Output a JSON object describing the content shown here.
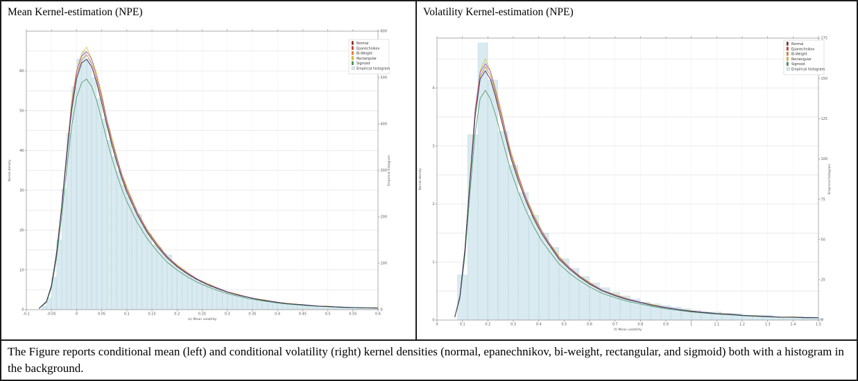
{
  "caption": "The Figure reports conditional mean (left) and conditional volatility (right) kernel densities (normal, epanechnikov, bi-weight, rectangular, and sigmoid) both with a histogram in the background.",
  "histogram_style": {
    "fill": "#d9eaf0",
    "stroke": "#b9d6e0"
  },
  "kernels": [
    {
      "name": "Normal",
      "line_color": "#30365a",
      "scale": 1.0,
      "jitter": 0.2
    },
    {
      "name": "Epanechnikov",
      "line_color": "#a14fa8",
      "scale": 1.03,
      "jitter": 0.5
    },
    {
      "name": "Bi-Weight",
      "line_color": "#e0832a",
      "scale": 1.015,
      "jitter": 0.45
    },
    {
      "name": "Rectangular",
      "line_color": "#d4c32e",
      "scale": 1.04,
      "jitter": 1.3
    },
    {
      "name": "Sigmoid",
      "line_color": "#43935a",
      "scale": 0.92,
      "jitter": 0.15
    }
  ],
  "legend_items": [
    {
      "label": "Normal",
      "marker_color": "#8a3324"
    },
    {
      "label": "Epanechnikov",
      "marker_color": "#d03b2f"
    },
    {
      "label": "Bi-Weight",
      "marker_color": "#e0832a"
    },
    {
      "label": "Rectangular",
      "marker_color": "#e3b72e"
    },
    {
      "label": "Sigmoid",
      "marker_color": "#43935a"
    },
    {
      "label": "Empirical histogram",
      "marker_color": "#d9eaf0"
    }
  ],
  "chart_data": [
    {
      "type": "line",
      "title": "Mean Kernel-estimation (NPE)",
      "xlabel": "(e) Mean volatility",
      "ylabel_left": "Kernel density",
      "ylabel_right": "Empirical histogram",
      "legend_position": "top-right",
      "grid": true,
      "xlim": [
        -0.1,
        0.6
      ],
      "xtick_values": [
        -0.1,
        -0.05,
        0,
        0.05,
        0.1,
        0.15,
        0.2,
        0.25,
        0.3,
        0.35,
        0.4,
        0.45,
        0.5,
        0.55,
        0.6
      ],
      "xtick_labels": [
        "-0.1",
        "-0.05",
        "0",
        "0.05",
        "0.1",
        "0.15",
        "0.2",
        "0.25",
        "0.3",
        "0.35",
        "0.4",
        "0.45",
        "0.5",
        "0.55",
        "0.6"
      ],
      "ylim_left": [
        0,
        70
      ],
      "ytick_left": [
        0,
        10,
        20,
        30,
        40,
        50,
        60
      ],
      "ylim_right": [
        0,
        600
      ],
      "ytick_right": [
        0,
        100,
        200,
        300,
        400,
        500,
        600
      ],
      "grid_step": 5,
      "histogram": {
        "axis": "right",
        "x0": -0.065,
        "dx": 0.01,
        "values": [
          8,
          25,
          70,
          150,
          260,
          380,
          480,
          540,
          556,
          540,
          500,
          455,
          410,
          365,
          330,
          298,
          268,
          243,
          220,
          205,
          180,
          163,
          140,
          134,
          121,
          118,
          99,
          90,
          81,
          74,
          67,
          60,
          55,
          50,
          45,
          41,
          37,
          33,
          30,
          27,
          25,
          22,
          20,
          18,
          17,
          15,
          14,
          12,
          11,
          10,
          9,
          8,
          8,
          7,
          6,
          6,
          5,
          5,
          4,
          4,
          4,
          3,
          3,
          3,
          2,
          2,
          2
        ]
      },
      "density": {
        "axis": "left",
        "x": [
          -0.075,
          -0.06,
          -0.05,
          -0.04,
          -0.03,
          -0.02,
          -0.01,
          0,
          0.01,
          0.02,
          0.03,
          0.04,
          0.05,
          0.06,
          0.07,
          0.08,
          0.09,
          0.1,
          0.12,
          0.14,
          0.16,
          0.18,
          0.2,
          0.22,
          0.24,
          0.26,
          0.28,
          0.3,
          0.32,
          0.34,
          0.36,
          0.38,
          0.4,
          0.42,
          0.45,
          0.48,
          0.5,
          0.53,
          0.56,
          0.6
        ],
        "y": [
          0.3,
          2,
          6,
          14,
          25,
          38,
          50,
          58,
          62,
          63,
          61,
          57,
          52,
          46.5,
          41.5,
          37,
          33,
          29.5,
          24,
          19.5,
          16,
          13,
          10.8,
          9,
          7.5,
          6.3,
          5.3,
          4.4,
          3.7,
          3.1,
          2.6,
          2.2,
          1.8,
          1.5,
          1.2,
          0.9,
          0.8,
          0.6,
          0.5,
          0.4
        ]
      }
    },
    {
      "type": "line",
      "title": "Volatility Kernel-estimation (NPE)",
      "xlabel": "(f) Mean volatility",
      "ylabel_left": "Kernel density",
      "ylabel_right": "Empirical histogram",
      "legend_position": "top-right",
      "grid": true,
      "xlim": [
        0,
        1.5
      ],
      "xtick_values": [
        0,
        0.1,
        0.2,
        0.3,
        0.4,
        0.5,
        0.6,
        0.7,
        0.8,
        0.9,
        1,
        1.1,
        1.2,
        1.3,
        1.4,
        1.5
      ],
      "xtick_labels": [
        "0",
        "0.1",
        "0.2",
        "0.3",
        "0.4",
        "0.5",
        "0.6",
        "0.7",
        "0.8",
        "0.9",
        "1",
        "1.1",
        "1.2",
        "1.3",
        "1.4",
        "1.5"
      ],
      "ylim_left": [
        0,
        4.86
      ],
      "ytick_left": [
        0,
        1,
        2,
        3,
        4
      ],
      "ylim_right": [
        0,
        175
      ],
      "ytick_right": [
        0,
        25,
        50,
        75,
        100,
        125,
        150,
        175
      ],
      "grid_step": 0.5,
      "histogram": {
        "axis": "right",
        "x0": 0.1,
        "dx": 0.04,
        "values": [
          28,
          115,
          172,
          149,
          117,
          96,
          79,
          65,
          54,
          45,
          38,
          32,
          27,
          23,
          20,
          17,
          15,
          13,
          11,
          10,
          9,
          8,
          7,
          6,
          5,
          5,
          4,
          4,
          3,
          3,
          3,
          2,
          2,
          2,
          2,
          1
        ]
      },
      "density": {
        "axis": "left",
        "x": [
          0.07,
          0.09,
          0.11,
          0.13,
          0.15,
          0.17,
          0.19,
          0.21,
          0.23,
          0.25,
          0.27,
          0.29,
          0.32,
          0.35,
          0.38,
          0.41,
          0.44,
          0.48,
          0.52,
          0.56,
          0.6,
          0.65,
          0.7,
          0.75,
          0.8,
          0.85,
          0.9,
          0.95,
          1.0,
          1.05,
          1.1,
          1.15,
          1.2,
          1.25,
          1.3,
          1.35,
          1.4,
          1.45,
          1.5
        ],
        "y": [
          0.05,
          0.4,
          1.2,
          2.4,
          3.5,
          4.15,
          4.3,
          4.15,
          3.85,
          3.5,
          3.15,
          2.8,
          2.4,
          2.05,
          1.75,
          1.5,
          1.3,
          1.05,
          0.88,
          0.74,
          0.62,
          0.5,
          0.42,
          0.35,
          0.3,
          0.25,
          0.21,
          0.18,
          0.15,
          0.13,
          0.11,
          0.1,
          0.08,
          0.07,
          0.06,
          0.05,
          0.05,
          0.04,
          0.04
        ]
      }
    }
  ]
}
